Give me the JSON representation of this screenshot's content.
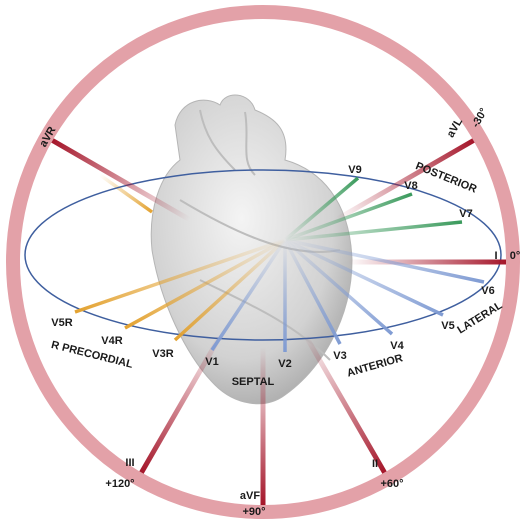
{
  "limb_leads": [
    {
      "label": "I",
      "angle": "0°"
    },
    {
      "label": "aVL",
      "angle": "-30°"
    },
    {
      "label": "aVR"
    },
    {
      "label": "II",
      "angle": "+60°"
    },
    {
      "label": "aVF",
      "angle": "+90°"
    },
    {
      "label": "III",
      "angle": "+120°"
    }
  ],
  "chest_leads": [
    "V1",
    "V2",
    "V3",
    "V4",
    "V5",
    "V6",
    "V7",
    "V8",
    "V9",
    "V3R",
    "V4R",
    "V5R"
  ],
  "regions": [
    "POSTERIOR",
    "LATERAL",
    "ANTERIOR",
    "SEPTAL",
    "R PRECORDIAL"
  ]
}
